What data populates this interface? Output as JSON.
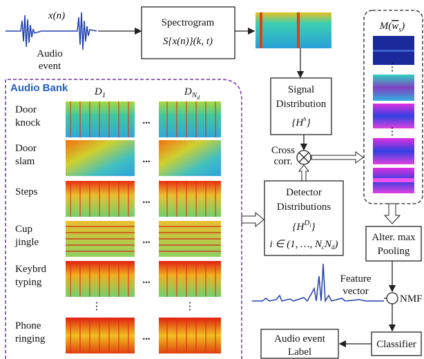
{
  "input": {
    "signal": "x(n)",
    "label": [
      "Audio",
      "event"
    ]
  },
  "spectrogram": {
    "title": "Spectrogram",
    "formula": "S{x(n)}(k, t)"
  },
  "templates": {
    "prefix": "M(",
    "base": "w",
    "sub": "s",
    "suffix": ")"
  },
  "audio_bank": {
    "title": "Audio Bank",
    "columns": [
      {
        "base": "D",
        "sub": "1"
      },
      {
        "base": "D",
        "sub": "N",
        "subsub": "d"
      }
    ],
    "rows": [
      {
        "label": [
          "Door",
          "knock"
        ]
      },
      {
        "label": [
          "Door",
          "slam"
        ]
      },
      {
        "label": [
          "Steps"
        ]
      },
      {
        "label": [
          "Cup",
          "jingle"
        ]
      },
      {
        "label": [
          "Keybrd",
          "typing"
        ]
      },
      {
        "label": [
          "Phone",
          "ringing"
        ]
      }
    ],
    "ellipsis": "...",
    "vdots": "⋮"
  },
  "signal_distribution": {
    "label": [
      "Signal",
      "Distribution"
    ],
    "symbol": {
      "open": "{H",
      "sup": "s",
      "close": "}"
    }
  },
  "cross_corr": {
    "label": [
      "Cross",
      "corr."
    ]
  },
  "detector_distributions": {
    "label": [
      "Detector",
      "Distributions"
    ],
    "symbol": {
      "open": "{H",
      "sup": "D",
      "supsub": "i",
      "close": "}"
    },
    "range": {
      "text": "i ∈ (1, …, N",
      "sub1": "c",
      "mid": "N",
      "sub2": "d",
      "close": ")"
    }
  },
  "pooling": {
    "label": [
      "Alter. max",
      "Pooling"
    ]
  },
  "feature_vector": {
    "label": [
      "Feature",
      "vector"
    ]
  },
  "nmf": "NMF",
  "classifier": "Classifier",
  "output": {
    "label": [
      "Audio event",
      "Label"
    ]
  }
}
